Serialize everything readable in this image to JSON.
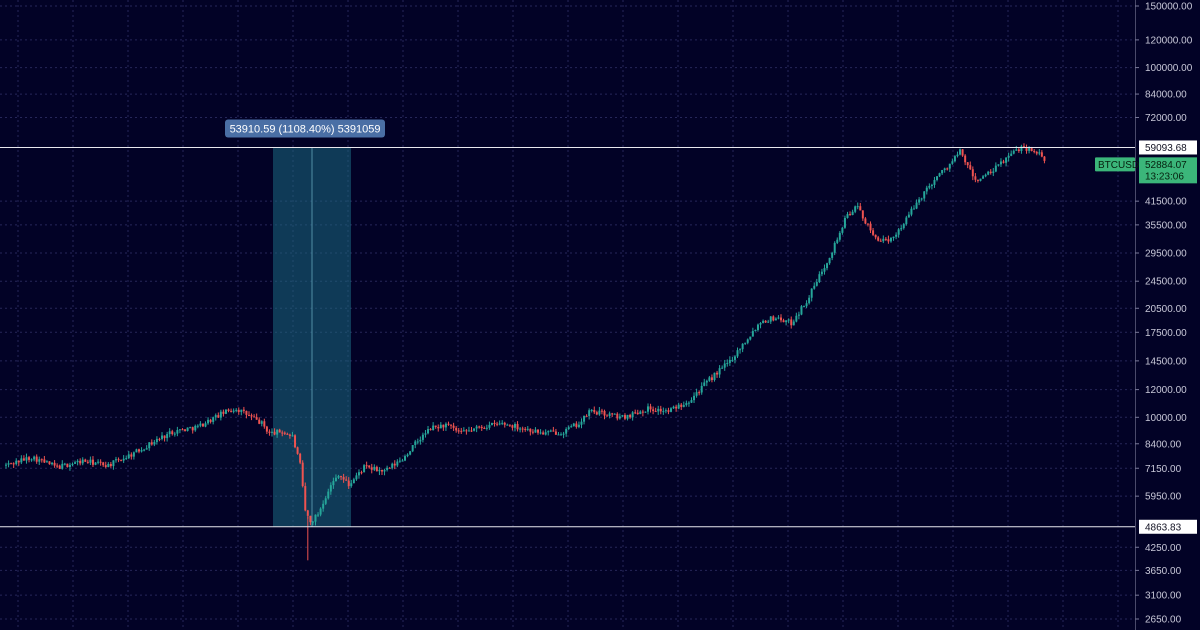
{
  "chart_data": {
    "type": "candlestick",
    "symbol": "BTCUSD",
    "scale": "log",
    "grid": true,
    "y_ticks": [
      150000,
      120000,
      100000,
      84000,
      72000,
      41500,
      35500,
      29500,
      24500,
      20500,
      17500,
      14500,
      12000,
      10000,
      8400,
      7150,
      5950,
      4250,
      3650,
      3100,
      2650
    ],
    "y_tick_labels": [
      "150000.00",
      "120000.00",
      "100000.00",
      "84000.00",
      "72000.00",
      "41500.00",
      "35500.00",
      "29500.00",
      "24500.00",
      "20500.00",
      "17500.00",
      "14500.00",
      "12000.00",
      "10000.00",
      "8400.00",
      "7150.00",
      "5950.00",
      "4250.00",
      "3650.00",
      "3100.00",
      "2650.00"
    ],
    "ylim": [
      2500,
      160000
    ],
    "bars_count": 230,
    "price_path": [
      [
        0,
        7300
      ],
      [
        10,
        7700
      ],
      [
        20,
        7200
      ],
      [
        30,
        7500
      ],
      [
        40,
        7300
      ],
      [
        50,
        7900
      ],
      [
        60,
        8700
      ],
      [
        65,
        9100
      ],
      [
        75,
        9400
      ],
      [
        85,
        10300
      ],
      [
        90,
        10600
      ],
      [
        95,
        10100
      ],
      [
        100,
        9600
      ],
      [
        103,
        9000
      ],
      [
        108,
        9100
      ],
      [
        112,
        8800
      ],
      [
        115,
        7300
      ],
      [
        117,
        5400
      ],
      [
        119,
        5000
      ],
      [
        122,
        5300
      ],
      [
        126,
        6200
      ],
      [
        130,
        6900
      ],
      [
        134,
        6400
      ],
      [
        140,
        7200
      ],
      [
        148,
        7000
      ],
      [
        155,
        7600
      ],
      [
        160,
        8400
      ],
      [
        166,
        9300
      ],
      [
        172,
        9500
      ],
      [
        178,
        9000
      ],
      [
        186,
        9400
      ],
      [
        194,
        9600
      ],
      [
        200,
        9400
      ],
      [
        210,
        9000
      ],
      [
        218,
        9100
      ],
      [
        225,
        9700
      ],
      [
        228,
        10400
      ]
    ],
    "horizontal_lines": [
      {
        "value": 59093.68,
        "label": "59093.68"
      },
      {
        "value": 4863.83,
        "label": "4863.83"
      }
    ],
    "measure_range": {
      "x_start": 0.2275,
      "x_end": 0.2925,
      "label": "53910.59 (1108.40%) 5391059"
    },
    "current_price": {
      "symbol": "BTCUSD",
      "value": 52884.07,
      "label": "52884.07",
      "countdown": "13:23:06"
    },
    "colors": {
      "background": "#020226",
      "up": "#26a69a",
      "down": "#ef5350",
      "grid": "#262659",
      "range_fill": "#1c6a80",
      "tooltip": "#4a6fa5",
      "current": "#3bb67a"
    }
  }
}
